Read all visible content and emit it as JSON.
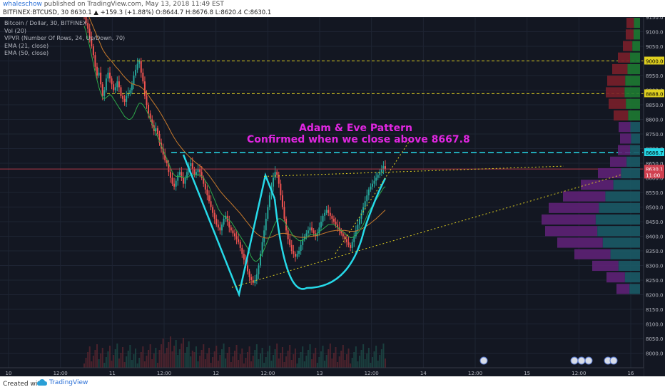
{
  "header": {
    "username": "whaleschow",
    "published_text": " published on TradingView.com, May 13, 2018 11:49 EST",
    "symbol_line": "BITFINEX:BTCUSD, 30 8630.1 ▲ +159.3 (+1.88%) O:8644.7 H:8676.8 L:8620.4 C:8630.1"
  },
  "legend": {
    "title": "Bitcoin / Dollar, 30, BITFINEX",
    "vol": "Vol (20)",
    "vpvr": "VPVR (Number Of Rows, 24, Up/Down, 70)",
    "ema21": "EMA (21, close)",
    "ema50": "EMA (50, close)"
  },
  "annotation": {
    "line1": "Adam & Eve Pattern",
    "line2": "Confirmed when we close above 8667.8"
  },
  "footer": {
    "created_with": "Created with",
    "brand": "TradingView"
  },
  "colors": {
    "background": "#131722",
    "up_candle": "#26a69a",
    "down_candle": "#ef5350",
    "ema21": "#2ea84a",
    "ema50": "#c77a2c",
    "pattern": "#26d9e8",
    "annotation": "#e026e0",
    "level": "#e0d020",
    "resistance": "#26d9e8"
  },
  "chart_data": {
    "type": "candlestick",
    "y_axis": {
      "ylim": [
        7950,
        9150
      ],
      "ticks": [
        8000,
        8050,
        8100,
        8150,
        8200,
        8250,
        8300,
        8350,
        8400,
        8450,
        8500,
        8550,
        8600,
        8650,
        8700,
        8750,
        8800,
        8850,
        8900,
        8950,
        9000,
        9050,
        9100,
        9150
      ]
    },
    "x_axis": {
      "ticks": [
        "10",
        "12:00",
        "11",
        "12:00",
        "12",
        "12:00",
        "13",
        "12:00",
        "14",
        "12:00",
        "15",
        "12:00",
        "16"
      ]
    },
    "price_labels": [
      {
        "label": "9000.0",
        "value": 9000
      },
      {
        "label": "8888.0",
        "value": 8888
      },
      {
        "label": "8686.7",
        "value": 8686.7
      },
      {
        "label": "8630.1",
        "value": 8630.1
      },
      {
        "label": "11:00",
        "value": 8610
      }
    ],
    "horizontal_levels": [
      {
        "value": 9000,
        "style": "dashed-yellow"
      },
      {
        "value": 8888,
        "style": "dashed-yellow"
      },
      {
        "value": 8686.7,
        "style": "dashed-cyan"
      },
      {
        "value": 8630.1,
        "style": "solid-red"
      }
    ],
    "closes": [
      9150,
      9130,
      9110,
      9080,
      9050,
      9020,
      8980,
      8950,
      8960,
      8920,
      8880,
      8900,
      8940,
      8960,
      8940,
      8920,
      8900,
      8910,
      8930,
      8910,
      8880,
      8870,
      8860,
      8880,
      8890,
      8900,
      8920,
      8950,
      8970,
      8990,
      9000,
      8960,
      8930,
      8880,
      8850,
      8820,
      8800,
      8780,
      8760,
      8770,
      8750,
      8720,
      8700,
      8680,
      8660,
      8650,
      8620,
      8600,
      8580,
      8570,
      8590,
      8610,
      8620,
      8600,
      8580,
      8600,
      8620,
      8640,
      8650,
      8630,
      8610,
      8620,
      8630,
      8620,
      8600,
      8580,
      8560,
      8540,
      8520,
      8500,
      8480,
      8460,
      8440,
      8430,
      8420,
      8440,
      8460,
      8470,
      8450,
      8430,
      8420,
      8410,
      8400,
      8390,
      8380,
      8360,
      8340,
      8320,
      8300,
      8280,
      8260,
      8250,
      8240,
      8250,
      8270,
      8300,
      8340,
      8380,
      8420,
      8460,
      8500,
      8540,
      8570,
      8600,
      8620,
      8610,
      8580,
      8540,
      8500,
      8460,
      8420,
      8390,
      8370,
      8350,
      8340,
      8330,
      8340,
      8350,
      8370,
      8390,
      8400,
      8410,
      8420,
      8430,
      8420,
      8410,
      8400,
      8410,
      8430,
      8450,
      8470,
      8480,
      8490,
      8480,
      8470,
      8460,
      8450,
      8440,
      8430,
      8420,
      8410,
      8400,
      8390,
      8380,
      8370,
      8360,
      8380,
      8400,
      8420,
      8440,
      8460,
      8480,
      8500,
      8520,
      8540,
      8560,
      8570,
      8580,
      8590,
      8600,
      8610,
      8620,
      8630,
      8640,
      8630
    ],
    "ema21": [
      9120,
      9100,
      9075,
      9050,
      9020,
      8990,
      8960,
      8935,
      8910,
      8890,
      8875,
      8870,
      8875,
      8880,
      8885,
      8880,
      8870,
      8860,
      8850,
      8840,
      8830,
      8820,
      8810,
      8805,
      8800,
      8800,
      8805,
      8815,
      8830,
      8845,
      8855,
      8855,
      8850,
      8840,
      8830,
      8815,
      8800,
      8785,
      8770,
      8755,
      8740,
      8725,
      8710,
      8695,
      8680,
      8665,
      8650,
      8635,
      8620,
      8610,
      8605,
      8605,
      8605,
      8605,
      8600,
      8600,
      8600,
      8605,
      8610,
      8610,
      8610,
      8610,
      8610,
      8610,
      8605,
      8600,
      8590,
      8580,
      8570,
      8555,
      8540,
      8525,
      8510,
      8495,
      8485,
      8475,
      8470,
      8465,
      8460,
      8455,
      8450,
      8440,
      8430,
      8420,
      8410,
      8400,
      8390,
      8380,
      8370,
      8360,
      8345,
      8330,
      8320,
      8315,
      8315,
      8320,
      8330,
      8340,
      8355,
      8370,
      8385,
      8400,
      8415,
      8430,
      8445,
      8455,
      8460,
      8460,
      8455,
      8450,
      8440,
      8430,
      8420,
      8410,
      8400,
      8395,
      8390,
      8385,
      8385,
      8385,
      8390,
      8395,
      8400,
      8405,
      8405,
      8405,
      8405,
      8410,
      8415,
      8420,
      8425,
      8430,
      8435,
      8440,
      8440,
      8440,
      8440,
      8435,
      8430,
      8425,
      8420,
      8415,
      8410,
      8405,
      8400,
      8395,
      8395,
      8400,
      8405,
      8410,
      8420,
      8430,
      8440,
      8455,
      8470,
      8485,
      8495,
      8505,
      8515,
      8525,
      8535,
      8545,
      8555,
      8565,
      8570
    ],
    "ema50": [
      9180,
      9170,
      9160,
      9145,
      9130,
      9115,
      9100,
      9085,
      9070,
      9055,
      9040,
      9030,
      9020,
      9012,
      9005,
      8998,
      8990,
      8982,
      8975,
      8968,
      8960,
      8952,
      8945,
      8938,
      8932,
      8926,
      8922,
      8920,
      8918,
      8916,
      8914,
      8910,
      8905,
      8898,
      8890,
      8882,
      8873,
      8864,
      8855,
      8846,
      8837,
      8827,
      8817,
      8806,
      8795,
      8784,
      8772,
      8760,
      8748,
      8737,
      8727,
      8718,
      8710,
      8702,
      8694,
      8687,
      8680,
      8674,
      8668,
      8662,
      8656,
      8651,
      8646,
      8641,
      8636,
      8630,
      8623,
      8616,
      8608,
      8600,
      8591,
      8582,
      8573,
      8564,
      8555,
      8547,
      8540,
      8533,
      8526,
      8520,
      8513,
      8506,
      8499,
      8492,
      8485,
      8478,
      8470,
      8462,
      8454,
      8446,
      8438,
      8430,
      8422,
      8415,
      8409,
      8404,
      8400,
      8397,
      8395,
      8394,
      8394,
      8395,
      8397,
      8400,
      8403,
      8406,
      8408,
      8409,
      8410,
      8410,
      8409,
      8408,
      8406,
      8404,
      8402,
      8400,
      8398,
      8397,
      8396,
      8396,
      8396,
      8397,
      8398,
      8399,
      8400,
      8401,
      8402,
      8403,
      8405,
      8407,
      8409,
      8411,
      8413,
      8415,
      8417,
      8418,
      8419,
      8420,
      8420,
      8420,
      8420,
      8420,
      8420,
      8419,
      8418,
      8417,
      8417,
      8417,
      8418,
      8420,
      8422,
      8425,
      8428,
      8432,
      8436,
      8440,
      8445,
      8450,
      8455,
      8460,
      8466,
      8472,
      8478,
      8484,
      8490
    ]
  }
}
